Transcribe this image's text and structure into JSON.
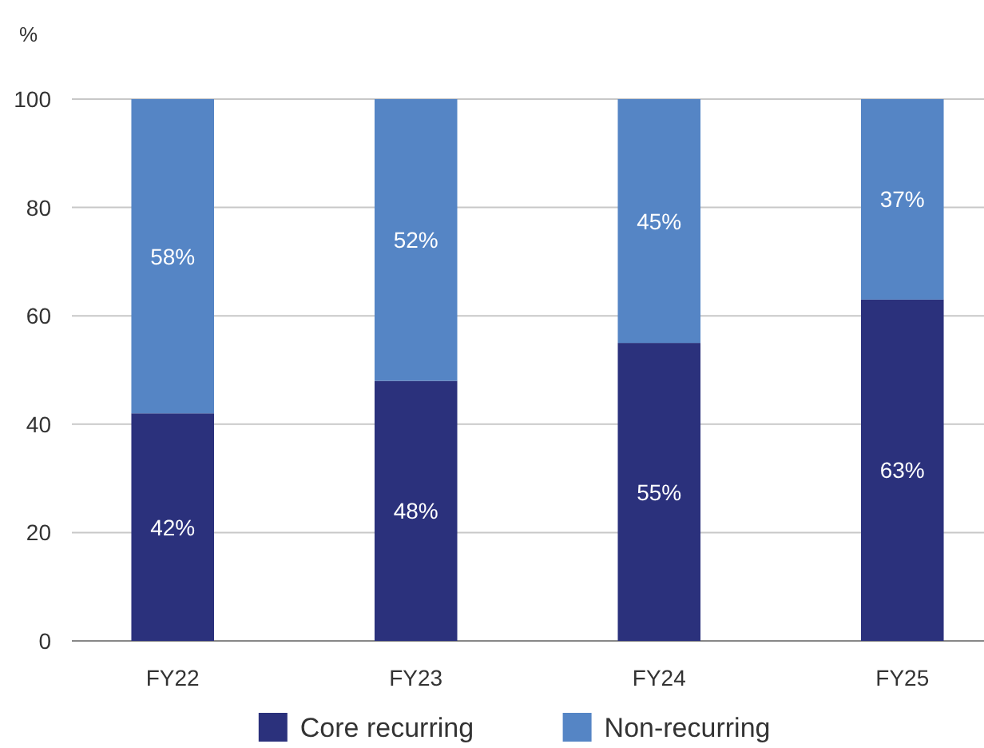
{
  "chart_data": {
    "type": "bar",
    "stacked": true,
    "ylabel": "%",
    "categories": [
      "FY22",
      "FY23",
      "FY24",
      "FY25"
    ],
    "series": [
      {
        "name": "Core recurring",
        "color": "#2b317c",
        "values": [
          42,
          48,
          55,
          63
        ],
        "value_labels": [
          "42%",
          "48%",
          "55%",
          "63%"
        ]
      },
      {
        "name": "Non-recurring",
        "color": "#5585c5",
        "values": [
          58,
          52,
          45,
          37
        ],
        "value_labels": [
          "58%",
          "52%",
          "45%",
          "37%"
        ]
      }
    ],
    "ylim": [
      0,
      100
    ],
    "yticks": [
      0,
      20,
      40,
      60,
      80,
      100
    ],
    "grid": "y",
    "legend": "bottom"
  }
}
